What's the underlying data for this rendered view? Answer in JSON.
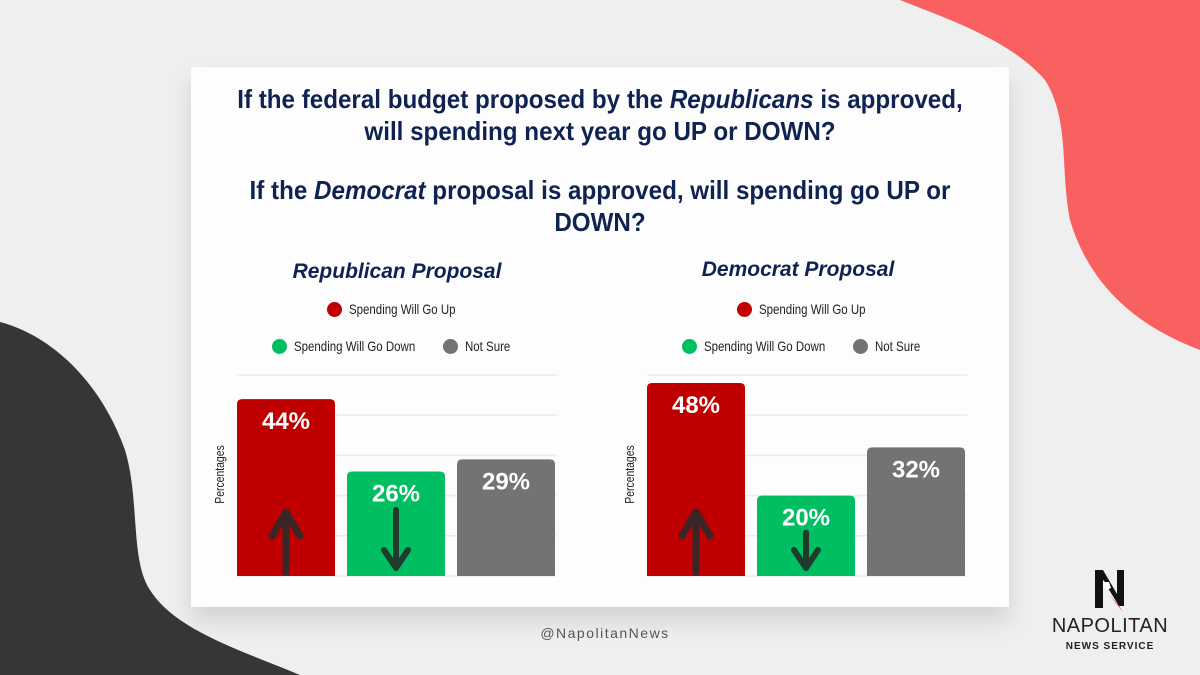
{
  "questions": {
    "q1": {
      "pre": "If the federal budget proposed by the ",
      "em": "Republicans",
      "post": " is approved, will spending next year go UP or DOWN?"
    },
    "q2": {
      "pre": "If the ",
      "em": "Democrat",
      "post": " proposal is approved, will spending go UP or DOWN?"
    }
  },
  "colors": {
    "up": "#c00000",
    "down": "#00bf63",
    "not_sure": "#737373",
    "title": "#0f2352",
    "accent_red_shape": "#f96060",
    "dark_shape": "#363636"
  },
  "legend": [
    {
      "key": "up",
      "label": "Spending Will Go Up",
      "color": "#c00000"
    },
    {
      "key": "down",
      "label": "Spending Will Go Down",
      "color": "#00bf63"
    },
    {
      "key": "not_sure",
      "label": "Not Sure",
      "color": "#737373"
    }
  ],
  "chart_data": [
    {
      "type": "bar",
      "title": "Republican Proposal",
      "xlabel": "",
      "ylabel": "Percentages",
      "ylim": [
        0,
        50
      ],
      "grid": true,
      "legend_position": "top",
      "categories": [
        "Spending Will Go Up",
        "Spending Will Go Down",
        "Not Sure"
      ],
      "values": [
        44,
        26,
        29
      ],
      "data_labels": [
        "44%",
        "26%",
        "29%"
      ],
      "colors": [
        "#c00000",
        "#00bf63",
        "#737373"
      ],
      "annotations": [
        "up-arrow",
        "down-arrow",
        ""
      ]
    },
    {
      "type": "bar",
      "title": "Democrat Proposal",
      "xlabel": "",
      "ylabel": "Percentages",
      "ylim": [
        0,
        50
      ],
      "grid": true,
      "legend_position": "top",
      "categories": [
        "Spending Will Go Up",
        "Spending Will Go Down",
        "Not Sure"
      ],
      "values": [
        48,
        20,
        32
      ],
      "data_labels": [
        "48%",
        "20%",
        "32%"
      ],
      "colors": [
        "#c00000",
        "#00bf63",
        "#737373"
      ],
      "annotations": [
        "up-arrow",
        "down-arrow",
        ""
      ]
    }
  ],
  "footer": {
    "handle": "@NapolitanNews"
  },
  "logo": {
    "name": "NAPOLITAN",
    "sub": "NEWS SERVICE"
  }
}
